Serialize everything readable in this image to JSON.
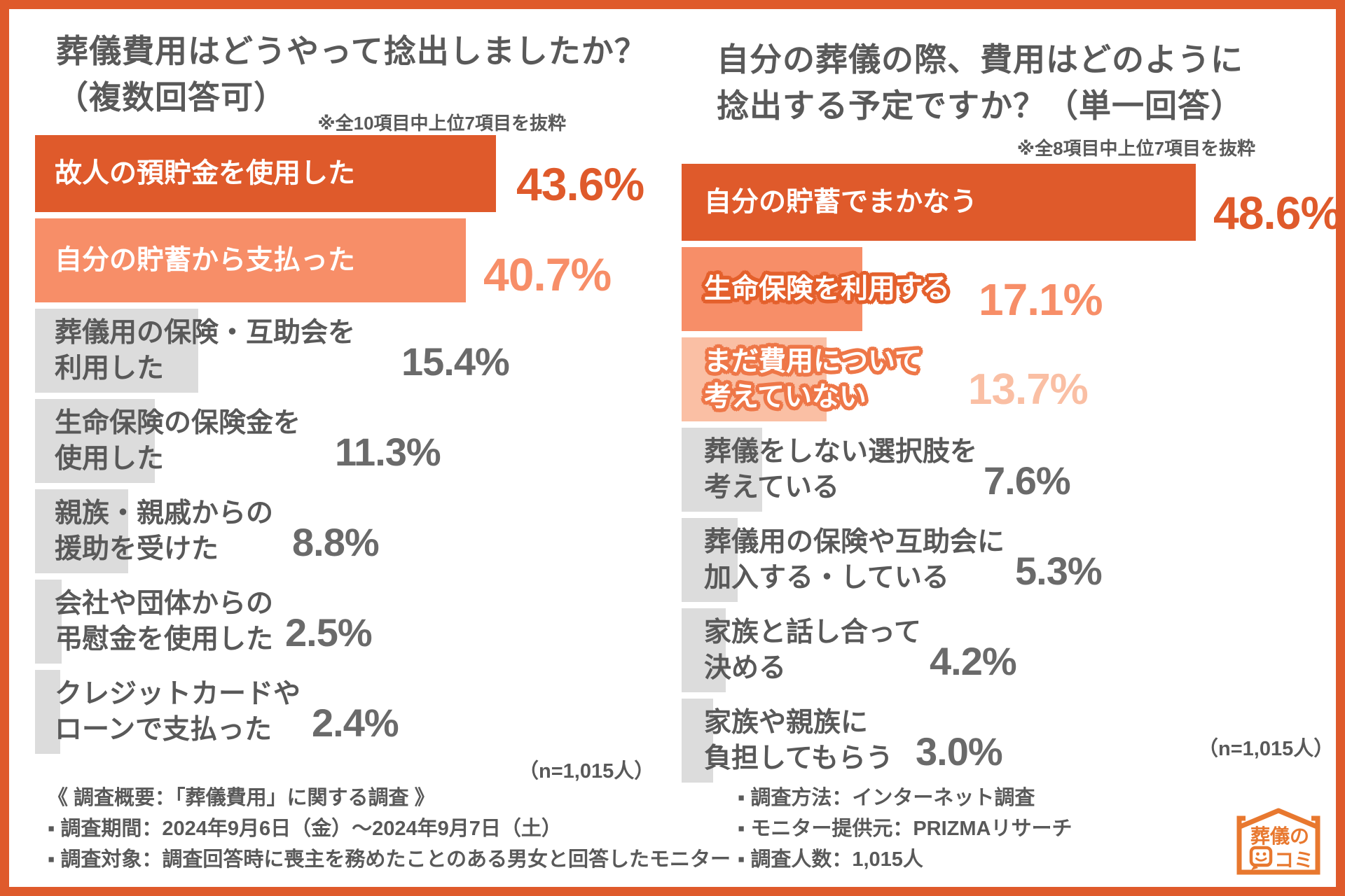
{
  "colors": {
    "accent_dark": "#DF5A2B",
    "accent_medium": "#F78E68",
    "accent_pale": "#FABFA4",
    "stroke_medium": "#E4602C",
    "stroke_pale": "#EE7748",
    "bar_gray": "#DCDCDC",
    "text_gray": "#595959",
    "pct_gray": "#6A6A6A",
    "border": "#DF5A2B",
    "logo_orange": "#E8782F"
  },
  "charts": [
    {
      "title_line1": "葬儀費用はどうやって捻出しましたか？",
      "title_line2": "（複数回答可）",
      "note": "※全10項目中上位7項目を抜粋",
      "n_label": "（n=1,015人）",
      "bars": [
        {
          "lines": [
            "故人の預貯金を使用した"
          ],
          "display": "43.6%",
          "style": "dark"
        },
        {
          "lines": [
            "自分の貯蓄から支払った"
          ],
          "display": "40.7%",
          "style": "medium"
        },
        {
          "lines": [
            "葬儀用の保険・互助会を",
            "利用した"
          ],
          "display": "15.4%",
          "style": "gray"
        },
        {
          "lines": [
            "生命保険の保険金を",
            "使用した"
          ],
          "display": "11.3%",
          "style": "gray"
        },
        {
          "lines": [
            "親族・親戚からの",
            "援助を受けた"
          ],
          "display": "8.8%",
          "style": "gray"
        },
        {
          "lines": [
            "会社や団体からの",
            "弔慰金を使用した"
          ],
          "display": "2.5%",
          "style": "gray"
        },
        {
          "lines": [
            "クレジットカードや",
            "ローンで支払った"
          ],
          "display": "2.4%",
          "style": "gray"
        }
      ]
    },
    {
      "title_line1": "自分の葬儀の際、費用はどのように",
      "title_line2": "捻出する予定ですか？（単一回答）",
      "note": "※全8項目中上位7項目を抜粋",
      "n_label": "（n=1,015人）",
      "bars": [
        {
          "lines": [
            "自分の貯蓄でまかなう"
          ],
          "display": "48.6%",
          "style": "dark"
        },
        {
          "lines": [
            "生命保険を利用する"
          ],
          "display": "17.1%",
          "style": "medium-outline"
        },
        {
          "lines": [
            "まだ費用について",
            "考えていない"
          ],
          "display": "13.7%",
          "style": "pale-outline"
        },
        {
          "lines": [
            "葬儀をしない選択肢を",
            "考えている"
          ],
          "display": "7.6%",
          "style": "gray"
        },
        {
          "lines": [
            "葬儀用の保険や互助会に",
            "加入する・している"
          ],
          "display": "5.3%",
          "style": "gray"
        },
        {
          "lines": [
            "家族と話し合って",
            "決める"
          ],
          "display": "4.2%",
          "style": "gray"
        },
        {
          "lines": [
            "家族や親族に",
            "負担してもらう"
          ],
          "display": "3.0%",
          "style": "gray"
        }
      ]
    }
  ],
  "chart_data": [
    {
      "type": "bar",
      "orientation": "horizontal",
      "title": "葬儀費用はどうやって捻出しましたか？（複数回答可）",
      "note": "※全10項目中上位7項目を抜粋",
      "sample": "n=1,015人",
      "categories": [
        "故人の預貯金を使用した",
        "自分の貯蓄から支払った",
        "葬儀用の保険・互助会を利用した",
        "生命保険の保険金を使用した",
        "親族・親戚からの援助を受けた",
        "会社や団体からの弔慰金を使用した",
        "クレジットカードやローンで支払った"
      ],
      "values": [
        43.6,
        40.7,
        15.4,
        11.3,
        8.8,
        2.5,
        2.4
      ],
      "unit": "%",
      "xlim": [
        0,
        50
      ],
      "grid": false,
      "legend": false
    },
    {
      "type": "bar",
      "orientation": "horizontal",
      "title": "自分の葬儀の際、費用はどのように捻出する予定ですか？（単一回答）",
      "note": "※全8項目中上位7項目を抜粋",
      "sample": "n=1,015人",
      "categories": [
        "自分の貯蓄でまかなう",
        "生命保険を利用する",
        "まだ費用について考えていない",
        "葬儀をしない選択肢を考えている",
        "葬儀用の保険や互助会に加入する・している",
        "家族と話し合って決める",
        "家族や親族に負担してもらう"
      ],
      "values": [
        48.6,
        17.1,
        13.7,
        7.6,
        5.3,
        4.2,
        3.0
      ],
      "unit": "%",
      "xlim": [
        0,
        50
      ],
      "grid": false,
      "legend": false
    }
  ],
  "footer": {
    "left_line1": "《 調査概要：「葬儀費用」に関する調査 》",
    "left_line2": "▪ 調査期間：2024年9月6日（金）〜2024年9月7日（土）",
    "left_line3": "▪ 調査対象：調査回答時に喪主を務めたことのある男女と回答したモニター",
    "right_line1": "▪ 調査方法：インターネット調査",
    "right_line2": "▪ モニター提供元：PRIZMAリサーチ",
    "right_line3": "▪ 調査人数：1,015人"
  },
  "logo": {
    "line1": "葬儀の",
    "line2": "コミ"
  }
}
